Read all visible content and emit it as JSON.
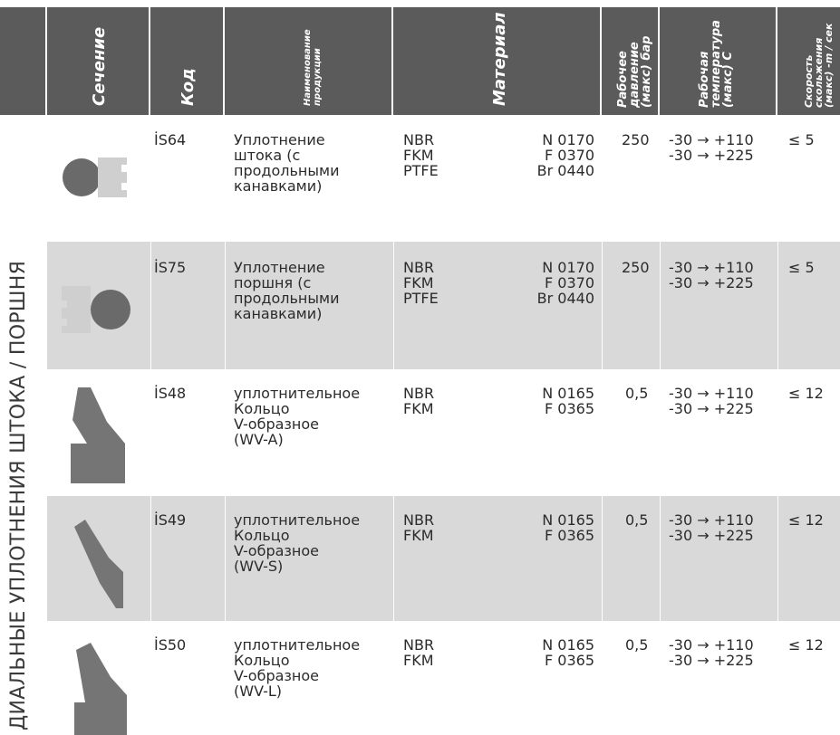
{
  "headers": {
    "section": "Сечение",
    "code": "Код",
    "name": "Наименование продукции",
    "material": "Материал",
    "pressure": "Рабочее давление (макс) бар",
    "temperature": "Рабочая температура (макс) С",
    "speed": "Скорость скольжения (макс) -m / сек"
  },
  "side_label": "ДИАЛЬНЫЕ УПЛОТНЕНИЯ ШТОКА / ПОРШНЯ",
  "rows": [
    {
      "code": "İS64",
      "name": "Уплотнение\nштока (с\nпродольными\nканавками)",
      "materials": "NBR\nFKM\nPTFE",
      "mat_codes": "N 0170\nF 0370\nBr 0440",
      "pressure": "250",
      "temperature": "-30 → +110\n-30 → +225",
      "speed": "≤ 5",
      "icon": "rod-seal-icon"
    },
    {
      "code": "İS75",
      "name": "Уплотнение\nпоршня (с\nпродольными\nканавками)",
      "materials": "NBR\nFKM\nPTFE",
      "mat_codes": "N 0170\nF 0370\nBr 0440",
      "pressure": "250",
      "temperature": "-30 → +110\n-30 → +225",
      "speed": "≤ 5",
      "icon": "piston-seal-icon"
    },
    {
      "code": "İS48",
      "name": "уплотнительное\nКольцо\nV-образное\n(WV-A)",
      "materials": "NBR\nFKM",
      "mat_codes": "N 0165\nF 0365",
      "pressure": "0,5",
      "temperature": "-30 → +110\n-30 → +225",
      "speed": "≤ 12",
      "icon": "v-ring-a-icon"
    },
    {
      "code": "İS49",
      "name": "уплотнительное\nКольцо\nV-образное\n(WV-S)",
      "materials": "NBR\nFKM",
      "mat_codes": "N 0165\nF 0365",
      "pressure": "0,5",
      "temperature": "-30 → +110\n-30 → +225",
      "speed": "≤ 12",
      "icon": "v-ring-s-icon"
    },
    {
      "code": "İS50",
      "name": "уплотнительное\nКольцо\nV-образное\n(WV-L)",
      "materials": "NBR\nFKM",
      "mat_codes": "N 0165\nF 0365",
      "pressure": "0,5",
      "temperature": "-30 → +110\n-30 → +225",
      "speed": "≤ 12",
      "icon": "v-ring-l-icon"
    }
  ]
}
